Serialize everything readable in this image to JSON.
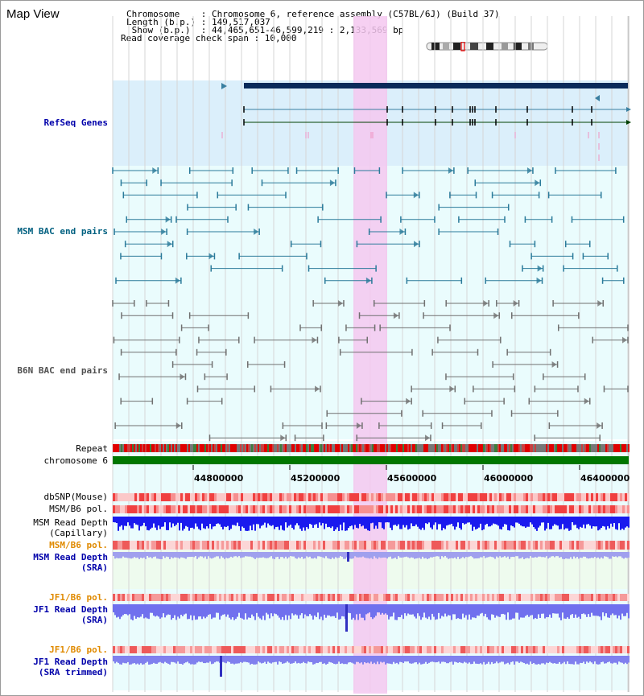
{
  "app": {
    "title": "Map View"
  },
  "header": {
    "lines": [
      "Chromosome    : Chromosome 6, reference assembly (C57BL/6J) (Build 37)",
      "Length (b.p.) : 149,517,037",
      " Show (b.p.)  : 44,465,651-46,599,219 : 2,133,569 bp",
      "Read coverage check span : 10,000"
    ]
  },
  "tracks": {
    "refseq": "RefSeq Genes",
    "msm_bac": "MSM BAC end pairs",
    "b6n_bac": "B6N BAC end pairs",
    "repeat": "Repeat",
    "chromosome": "chromosome 6",
    "dbsnp": "dbSNP(Mouse)",
    "msm_b6_pol_1": "MSM/B6 pol.",
    "msm_depth_cap_1": "MSM Read Depth",
    "msm_depth_cap_2": "(Capillary)",
    "msm_b6_pol_2": "MSM/B6 pol.",
    "msm_depth_sra_1": "MSM Read Depth",
    "msm_depth_sra_2": "(SRA)",
    "jf1_b6_pol_1": "JF1/B6 pol.",
    "jf1_depth_sra_1": "JF1 Read Depth",
    "jf1_depth_sra_2": "(SRA)",
    "jf1_b6_pol_2": "JF1/B6 pol.",
    "jf1_depth_trim_1": "JF1 Read Depth",
    "jf1_depth_trim_2": "(SRA trimmed)"
  },
  "axis": {
    "ticks": [
      "44800000",
      "45200000",
      "45600000",
      "46000000",
      "46400000"
    ]
  },
  "colors": {
    "refseq_label": "#0000aa",
    "msm_label": "#006080",
    "b6n_label": "#505050",
    "pol_orange": "#e08a00",
    "depth_blue": "#0000aa",
    "highlight": "#f5c8f0",
    "refseq_bg": "#dbeffb",
    "bac_bg": "#eafcfd",
    "chromosome_band": "#007700"
  }
}
